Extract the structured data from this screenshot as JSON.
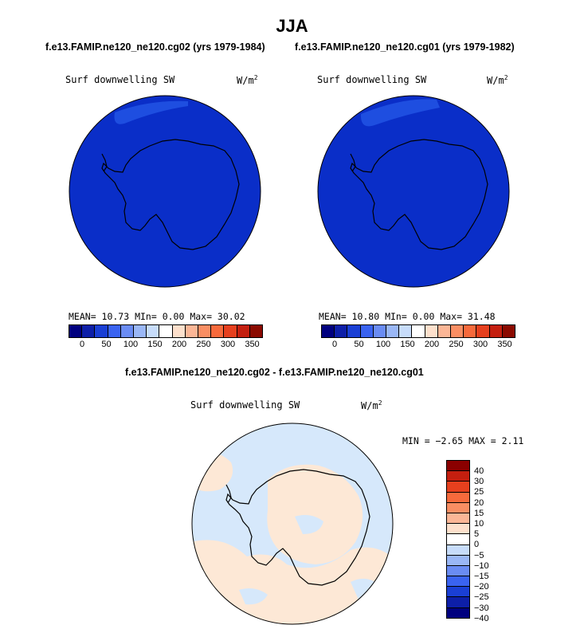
{
  "title": "JJA",
  "panels": {
    "left": {
      "case_title": "f.e13.FAMIP.ne120_ne120.cg02 (yrs 1979-1984)",
      "variable": "Surf downwelling SW",
      "units_base": "W/m",
      "units_exp": "2",
      "stats": "MEAN=  10.73  MIn=   0.00  Max=  30.02"
    },
    "right": {
      "case_title": "f.e13.FAMIP.ne120_ne120.cg01 (yrs 1979-1982)",
      "variable": "Surf downwelling SW",
      "units_base": "W/m",
      "units_exp": "2",
      "stats": "MEAN=  10.80  MIn=   0.00  Max=  31.48"
    },
    "diff": {
      "case_title": "f.e13.FAMIP.ne120_ne120.cg02 - f.e13.FAMIP.ne120_ne120.cg01",
      "variable": "Surf downwelling SW",
      "units_base": "W/m",
      "units_exp": "2",
      "minmax": "MIN =  −2.65 MAX =   2.11"
    }
  },
  "abs_colorbar": {
    "colors": [
      "#00007f",
      "#0d1fa8",
      "#1a3fd4",
      "#3a63f0",
      "#6a8cf3",
      "#9ab7f6",
      "#c7dcfa",
      "#ffffff",
      "#fde0cc",
      "#fbb696",
      "#f98e63",
      "#f76a3c",
      "#e6401e",
      "#c41f0f",
      "#8b0a00"
    ],
    "ticks": [
      "0",
      "50",
      "100",
      "150",
      "200",
      "250",
      "300",
      "350"
    ]
  },
  "diff_colorbar": {
    "colors": [
      "#8b0000",
      "#c41f0f",
      "#e6401e",
      "#f76a3c",
      "#f98e63",
      "#fbb696",
      "#fde0cc",
      "#ffffff",
      "#c7dcfa",
      "#9ab7f6",
      "#6a8cf3",
      "#3a63f0",
      "#1a3fd4",
      "#0d1fa8",
      "#00007f"
    ],
    "ticks": [
      "40",
      "30",
      "25",
      "20",
      "15",
      "10",
      "5",
      "0",
      "−5",
      "−10",
      "−15",
      "−20",
      "−25",
      "−30",
      "−40"
    ]
  },
  "map_colors": {
    "ocean_field": "#0a2ec8",
    "bright_patch": "#1e4ee0",
    "diff_pos": "#fde8d6",
    "diff_neg": "#d6e8fb"
  }
}
